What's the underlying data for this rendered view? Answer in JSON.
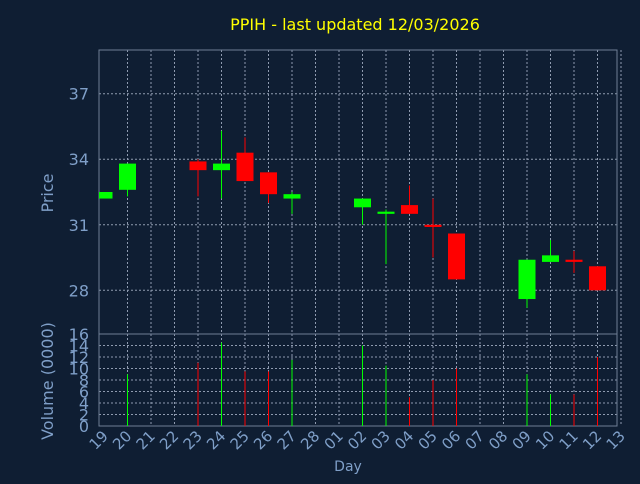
{
  "chart_data": {
    "type": "candlestick",
    "title": "PPIH - last updated 12/03/2026",
    "xlabel": "Day",
    "ylabel": "Price",
    "ylabel_volume": "Volume (0000)",
    "ylim": [
      26,
      39
    ],
    "ylim_volume": [
      0,
      16
    ],
    "price_ticks": [
      28,
      31,
      34,
      37
    ],
    "volume_ticks": [
      0,
      2,
      4,
      6,
      8,
      10,
      12,
      14,
      16
    ],
    "grid": true,
    "x_labels": [
      "19",
      "20",
      "21",
      "22",
      "23",
      "24",
      "25",
      "26",
      "27",
      "28",
      "01",
      "02",
      "03",
      "04",
      "05",
      "06",
      "07",
      "08",
      "09",
      "10",
      "11",
      "12",
      "13"
    ],
    "candles": [
      {
        "day": "19",
        "open": 32.2,
        "close": 32.5,
        "high": 32.5,
        "low": 32.2,
        "volume": 0
      },
      {
        "day": "20",
        "open": 32.6,
        "close": 33.8,
        "high": 33.8,
        "low": 32.3,
        "volume": 9
      },
      {
        "day": "23",
        "open": 33.9,
        "close": 33.5,
        "high": 34.0,
        "low": 32.3,
        "volume": 11
      },
      {
        "day": "24",
        "open": 33.5,
        "close": 33.8,
        "high": 35.3,
        "low": 32.2,
        "volume": 14.5
      },
      {
        "day": "25",
        "open": 34.3,
        "close": 33.0,
        "high": 35.0,
        "low": 33.0,
        "volume": 9.5
      },
      {
        "day": "26",
        "open": 33.4,
        "close": 32.4,
        "high": 33.4,
        "low": 32.0,
        "volume": 9.5
      },
      {
        "day": "27",
        "open": 32.2,
        "close": 32.4,
        "high": 32.5,
        "low": 31.5,
        "volume": 11.5
      },
      {
        "day": "02",
        "open": 31.8,
        "close": 32.2,
        "high": 32.2,
        "low": 31.0,
        "volume": 14
      },
      {
        "day": "03",
        "open": 31.5,
        "close": 31.6,
        "high": 31.7,
        "low": 29.2,
        "volume": 10.5
      },
      {
        "day": "04",
        "open": 31.9,
        "close": 31.5,
        "high": 32.8,
        "low": 31.5,
        "volume": 5
      },
      {
        "day": "05",
        "open": 31.0,
        "close": 30.9,
        "high": 32.2,
        "low": 29.5,
        "volume": 8
      },
      {
        "day": "06",
        "open": 30.6,
        "close": 28.5,
        "high": 30.6,
        "low": 28.5,
        "volume": 10
      },
      {
        "day": "09",
        "open": 27.6,
        "close": 29.4,
        "high": 29.4,
        "low": 27.2,
        "volume": 9
      },
      {
        "day": "10",
        "open": 29.3,
        "close": 29.6,
        "high": 30.3,
        "low": 29.3,
        "volume": 5.5
      },
      {
        "day": "11",
        "open": 29.4,
        "close": 29.3,
        "high": 29.8,
        "low": 28.8,
        "volume": 5.5
      },
      {
        "day": "12",
        "open": 29.1,
        "close": 28.0,
        "high": 29.1,
        "low": 28.0,
        "volume": 12
      }
    ],
    "colors": {
      "background": "#0f1e33",
      "frame": "#6f7f96",
      "grid": "#8f9bb0",
      "title": "#ffff00",
      "axis_label": "#7f9fc8",
      "tick_label": "#7f9fc8",
      "up": "#00ff00",
      "down": "#ff0000"
    }
  }
}
